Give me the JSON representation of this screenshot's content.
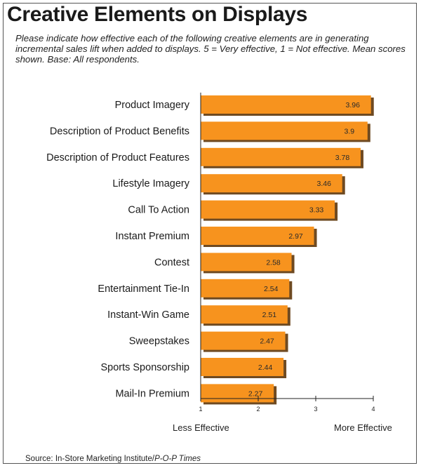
{
  "chart_data": {
    "type": "bar",
    "orientation": "horizontal",
    "title": "Creative Elements on Displays",
    "subtitle": "Please indicate how effective each of the following creative elements are in generating incremental sales lift when added to displays. 5 = Very effective, 1 = Not effective. Mean scores shown. Base: All respondents.",
    "categories": [
      "Product Imagery",
      "Description of Product Benefits",
      "Description of Product Features",
      "Lifestyle Imagery",
      "Call To Action",
      "Instant Premium",
      "Contest",
      "Entertainment Tie-In",
      "Instant-Win Game",
      "Sweepstakes",
      "Sports Sponsorship",
      "Mail-In Premium"
    ],
    "values": [
      3.96,
      3.9,
      3.78,
      3.46,
      3.33,
      2.97,
      2.58,
      2.54,
      2.51,
      2.47,
      2.44,
      2.27
    ],
    "value_labels": [
      "3.96",
      "3.9",
      "3.78",
      "3.46",
      "3.33",
      "2.97",
      "2.58",
      "2.54",
      "2.51",
      "2.47",
      "2.44",
      "2.27"
    ],
    "x_ticks": [
      "1",
      "2",
      "3",
      "4"
    ],
    "xlim": [
      1,
      4
    ],
    "x_low_label": "Less Effective",
    "x_high_label": "More Effective",
    "grid": false,
    "legend": "none",
    "bar_color": "#f7931e",
    "bar_shadow_color": "#6e4a22"
  },
  "source": {
    "prefix": "Source: In-Store Marketing Institute/",
    "publication": "P-O-P Times"
  }
}
